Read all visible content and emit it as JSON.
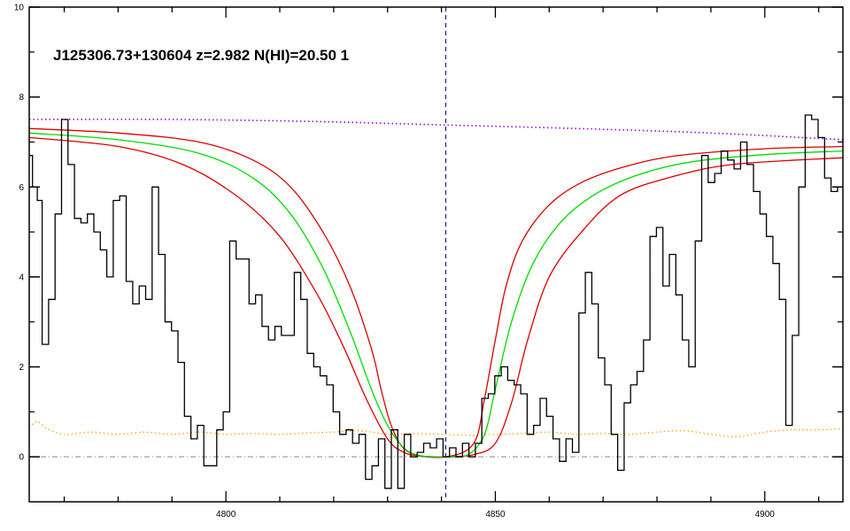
{
  "chart_data": {
    "type": "line",
    "title": "J125306.73+130604 z=2.982 N(HI)=20.50 1",
    "xlabel": "",
    "ylabel": "",
    "xlim": [
      4763.5,
      4914.5
    ],
    "ylim": [
      -1.0,
      10.0
    ],
    "x_ticks": [
      4800,
      4850,
      4900
    ],
    "y_ticks": [
      0,
      2,
      4,
      6,
      8,
      10
    ],
    "x_tick_labels": [
      "4800",
      "4850",
      "4900"
    ],
    "y_tick_labels": [
      "0",
      "2",
      "4",
      "6",
      "8",
      "10"
    ],
    "grid": false,
    "legend": "none",
    "reference_line_x": 4840.8,
    "zero_line_y": 0,
    "colors": {
      "flux": "#000000",
      "continuum": "#a000e0",
      "model": "#00dd00",
      "model_bounds": "#dd0000",
      "error": "#ff9900",
      "reference": "#000080",
      "zero": "#888888"
    },
    "series": [
      {
        "role": "flux",
        "step": true,
        "x": [
          4763.5,
          4764.7,
          4765.3,
          4766.5,
          4767.7,
          4768.9,
          4770.1,
          4771.3,
          4772.5,
          4773.7,
          4774.9,
          4776.1,
          4777.3,
          4778.5,
          4779.7,
          4780.9,
          4782.1,
          4783.3,
          4784.5,
          4785.7,
          4786.9,
          4788.1,
          4789.3,
          4790.5,
          4791.7,
          4792.9,
          4794.1,
          4795.3,
          4796.5,
          4797.7,
          4798.9,
          4800.1,
          4801.3,
          4802.5,
          4803.7,
          4804.9,
          4806.1,
          4807.3,
          4808.5,
          4809.7,
          4810.9,
          4812.1,
          4813.3,
          4814.5,
          4815.7,
          4816.9,
          4818.1,
          4819.3,
          4820.5,
          4821.7,
          4822.9,
          4824.1,
          4825.3,
          4826.5,
          4827.7,
          4828.9,
          4830.1,
          4831.3,
          4832.5,
          4833.7,
          4834.9,
          4836.1,
          4837.3,
          4838.5,
          4839.7,
          4840.9,
          4842.1,
          4843.3,
          4844.5,
          4845.7,
          4846.9,
          4848.1,
          4849.3,
          4850.5,
          4851.7,
          4852.9,
          4854.1,
          4855.3,
          4856.5,
          4857.7,
          4858.9,
          4860.1,
          4861.3,
          4862.5,
          4863.7,
          4864.9,
          4866.1,
          4867.3,
          4868.5,
          4869.7,
          4870.9,
          4872.1,
          4873.3,
          4874.5,
          4875.7,
          4876.9,
          4878.1,
          4879.3,
          4880.5,
          4881.7,
          4882.9,
          4884.1,
          4885.3,
          4886.5,
          4887.7,
          4888.9,
          4890.1,
          4891.3,
          4892.5,
          4893.7,
          4894.9,
          4896.1,
          4897.3,
          4898.5,
          4899.7,
          4900.9,
          4902.1,
          4903.3,
          4904.5,
          4905.7,
          4906.9,
          4908.1,
          4909.3,
          4910.5,
          4911.7,
          4912.9,
          4914.1
        ],
        "y": [
          6.7,
          6.0,
          5.7,
          2.5,
          3.5,
          5.4,
          7.5,
          6.5,
          5.3,
          5.2,
          5.4,
          5.0,
          4.6,
          4.0,
          5.7,
          5.8,
          3.9,
          3.4,
          3.8,
          3.5,
          6.0,
          4.5,
          3.0,
          2.8,
          2.1,
          0.9,
          0.4,
          0.7,
          -0.2,
          -0.2,
          0.6,
          1.0,
          4.8,
          4.4,
          4.4,
          3.4,
          3.6,
          2.9,
          2.6,
          2.9,
          2.7,
          2.7,
          4.1,
          3.5,
          2.3,
          2.0,
          1.8,
          1.6,
          1.0,
          0.5,
          0.6,
          0.3,
          0.5,
          -0.5,
          -0.2,
          0.4,
          -0.7,
          0.6,
          -0.7,
          0.5,
          0.0,
          0.1,
          0.3,
          0.2,
          0.4,
          0.0,
          0.2,
          0.0,
          0.3,
          0.0,
          0.3,
          1.3,
          1.4,
          1.8,
          2.0,
          1.7,
          1.6,
          1.4,
          0.5,
          0.7,
          1.3,
          0.9,
          0.4,
          -0.1,
          0.4,
          0.1,
          3.2,
          4.1,
          3.4,
          2.2,
          1.6,
          0.5,
          -0.3,
          1.2,
          1.6,
          1.9,
          2.6,
          4.9,
          5.1,
          3.8,
          4.5,
          3.6,
          2.6,
          2.0,
          4.8,
          6.7,
          6.1,
          6.3,
          6.8,
          6.6,
          6.4,
          7.0,
          6.5,
          5.9,
          5.4,
          4.9,
          4.3,
          3.5,
          0.7,
          2.7,
          6.0,
          7.6,
          7.5,
          7.1,
          6.2,
          5.9,
          6.0
        ]
      },
      {
        "role": "continuum",
        "x": [
          4763.5,
          4790,
          4815,
          4840,
          4865,
          4890,
          4914.5
        ],
        "y": [
          7.5,
          7.5,
          7.46,
          7.38,
          7.3,
          7.2,
          7.05
        ]
      },
      {
        "role": "model",
        "x": [
          4763.5,
          4780,
          4795,
          4805,
          4812,
          4818,
          4823,
          4827,
          4830,
          4833,
          4836,
          4840.8,
          4845,
          4848,
          4850,
          4853,
          4857,
          4862,
          4868,
          4876,
          4886,
          4900,
          4914.5
        ],
        "y": [
          7.2,
          7.05,
          6.75,
          6.2,
          5.4,
          4.2,
          2.8,
          1.5,
          0.7,
          0.2,
          0.03,
          0.0,
          0.05,
          0.5,
          1.5,
          3.0,
          4.3,
          5.2,
          5.8,
          6.25,
          6.55,
          6.72,
          6.8
        ]
      },
      {
        "role": "model_upper",
        "x": [
          4763.5,
          4780,
          4795,
          4805,
          4812,
          4818,
          4823,
          4827,
          4829,
          4831,
          4834,
          4840.8,
          4846,
          4848,
          4850,
          4852,
          4855,
          4860,
          4866,
          4874,
          4884,
          4900,
          4914.5
        ],
        "y": [
          7.3,
          7.2,
          7.0,
          6.6,
          6.0,
          5.0,
          3.8,
          2.4,
          1.4,
          0.6,
          0.1,
          0.0,
          0.3,
          1.3,
          2.6,
          3.8,
          4.8,
          5.6,
          6.1,
          6.45,
          6.7,
          6.85,
          6.9
        ]
      },
      {
        "role": "model_lower",
        "x": [
          4763.5,
          4780,
          4792,
          4802,
          4810,
          4817,
          4822,
          4826,
          4830,
          4833,
          4836,
          4840.8,
          4846,
          4850,
          4853,
          4856,
          4860,
          4866,
          4873,
          4882,
          4894,
          4914.5
        ],
        "y": [
          7.1,
          6.9,
          6.5,
          5.8,
          4.9,
          3.6,
          2.4,
          1.3,
          0.4,
          0.1,
          0.02,
          0.0,
          0.05,
          0.3,
          1.2,
          2.6,
          4.0,
          5.0,
          5.8,
          6.2,
          6.5,
          6.65
        ]
      },
      {
        "role": "error",
        "x": [
          4763.5,
          4765,
          4767,
          4770,
          4775,
          4780,
          4785,
          4790,
          4795,
          4800,
          4805,
          4810,
          4815,
          4820,
          4825,
          4830,
          4835,
          4840,
          4845,
          4850,
          4855,
          4860,
          4865,
          4870,
          4875,
          4880,
          4885,
          4890,
          4895,
          4900,
          4905,
          4910,
          4914.5
        ],
        "y": [
          0.65,
          0.78,
          0.62,
          0.5,
          0.55,
          0.5,
          0.55,
          0.5,
          0.55,
          0.5,
          0.52,
          0.5,
          0.53,
          0.55,
          0.58,
          0.5,
          0.52,
          0.5,
          0.48,
          0.5,
          0.52,
          0.55,
          0.5,
          0.52,
          0.5,
          0.55,
          0.58,
          0.5,
          0.45,
          0.55,
          0.6,
          0.6,
          0.62
        ]
      }
    ]
  }
}
